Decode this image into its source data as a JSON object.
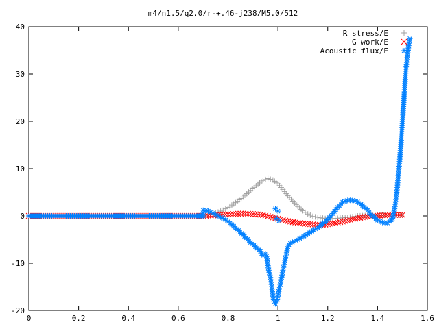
{
  "chart_data": {
    "type": "scatter",
    "title": "m4/n1.5/q2.0/r-+.46-j238/M5.0/512",
    "xlabel": "",
    "ylabel": "",
    "xlim": [
      0,
      1.6
    ],
    "ylim": [
      -20,
      40
    ],
    "xticks": [
      "0",
      "0.2",
      "0.4",
      "0.6",
      "0.8",
      "1",
      "1.2",
      "1.4",
      "1.6"
    ],
    "yticks": [
      "-20",
      "-10",
      "0",
      "10",
      "20",
      "30",
      "40"
    ],
    "grid": false,
    "legend_position": "top-right",
    "series": [
      {
        "name": "R stress/E",
        "marker": "plus",
        "color": "#a0a0a0",
        "points": [
          [
            0,
            0
          ],
          [
            0.7,
            0
          ],
          [
            0.72,
            0.2
          ],
          [
            0.75,
            0.6
          ],
          [
            0.78,
            1.2
          ],
          [
            0.8,
            1.8
          ],
          [
            0.83,
            2.8
          ],
          [
            0.86,
            4.0
          ],
          [
            0.89,
            5.4
          ],
          [
            0.92,
            6.7
          ],
          [
            0.94,
            7.5
          ],
          [
            0.96,
            7.9
          ],
          [
            0.98,
            7.6
          ],
          [
            1.0,
            6.8
          ],
          [
            1.02,
            5.6
          ],
          [
            1.04,
            4.3
          ],
          [
            1.06,
            3.1
          ],
          [
            1.08,
            2.0
          ],
          [
            1.1,
            1.1
          ],
          [
            1.12,
            0.4
          ],
          [
            1.14,
            -0.1
          ],
          [
            1.17,
            -0.4
          ],
          [
            1.2,
            -0.6
          ],
          [
            1.24,
            -0.5
          ],
          [
            1.28,
            -0.3
          ],
          [
            1.32,
            0
          ],
          [
            1.36,
            0.1
          ],
          [
            1.4,
            0.1
          ],
          [
            1.45,
            0.2
          ],
          [
            1.5,
            0.2
          ]
        ]
      },
      {
        "name": "G work/E",
        "marker": "cross",
        "color": "#ff0000",
        "points": [
          [
            0,
            0
          ],
          [
            0.7,
            0
          ],
          [
            0.74,
            0.1
          ],
          [
            0.78,
            0.3
          ],
          [
            0.82,
            0.4
          ],
          [
            0.86,
            0.5
          ],
          [
            0.9,
            0.4
          ],
          [
            0.94,
            0.2
          ],
          [
            0.97,
            -0.2
          ],
          [
            1.0,
            -0.6
          ],
          [
            1.03,
            -1.0
          ],
          [
            1.06,
            -1.3
          ],
          [
            1.1,
            -1.6
          ],
          [
            1.14,
            -1.8
          ],
          [
            1.18,
            -1.9
          ],
          [
            1.22,
            -1.6
          ],
          [
            1.26,
            -1.2
          ],
          [
            1.3,
            -0.7
          ],
          [
            1.34,
            -0.3
          ],
          [
            1.38,
            0
          ],
          [
            1.42,
            0.1
          ],
          [
            1.46,
            0.2
          ],
          [
            1.5,
            0.2
          ]
        ]
      },
      {
        "name": "Acoustic flux/E",
        "marker": "star",
        "color": "#0080ff",
        "points": [
          [
            0,
            0
          ],
          [
            0.7,
            0
          ],
          [
            0.7,
            1.2
          ],
          [
            0.72,
            1.0
          ],
          [
            0.74,
            0.6
          ],
          [
            0.76,
            0
          ],
          [
            0.78,
            -0.5
          ],
          [
            0.8,
            -1.2
          ],
          [
            0.83,
            -2.5
          ],
          [
            0.86,
            -4.0
          ],
          [
            0.89,
            -5.6
          ],
          [
            0.91,
            -6.5
          ],
          [
            0.93,
            -7.5
          ],
          [
            0.94,
            -8.4
          ],
          [
            0.95,
            -8.0
          ],
          [
            0.955,
            -8.5
          ],
          [
            0.96,
            -10.5
          ],
          [
            0.965,
            -12.0
          ],
          [
            0.97,
            -13.0
          ],
          [
            0.975,
            -15.0
          ],
          [
            0.98,
            -17.0
          ],
          [
            0.985,
            -18.2
          ],
          [
            0.99,
            -18.6
          ],
          [
            0.995,
            -18.2
          ],
          [
            1.0,
            -17.0
          ],
          [
            1.005,
            -15.5
          ],
          [
            1.01,
            -14.5
          ],
          [
            1.015,
            -13.0
          ],
          [
            1.02,
            -11.5
          ],
          [
            1.025,
            -10.3
          ],
          [
            1.03,
            -9.0
          ],
          [
            1.035,
            -7.8
          ],
          [
            1.04,
            -6.5
          ],
          [
            1.05,
            -5.8
          ],
          [
            1.08,
            -5.0
          ],
          [
            1.12,
            -3.8
          ],
          [
            1.16,
            -2.5
          ],
          [
            1.2,
            -0.8
          ],
          [
            1.22,
            0.5
          ],
          [
            1.24,
            1.8
          ],
          [
            1.26,
            2.9
          ],
          [
            1.28,
            3.3
          ],
          [
            1.3,
            3.3
          ],
          [
            1.32,
            3.0
          ],
          [
            1.34,
            2.2
          ],
          [
            1.36,
            1.2
          ],
          [
            1.38,
            0
          ],
          [
            1.4,
            -0.9
          ],
          [
            1.42,
            -1.4
          ],
          [
            1.44,
            -1.5
          ],
          [
            1.45,
            -1.2
          ],
          [
            1.46,
            -0.5
          ],
          [
            1.465,
            0.5
          ],
          [
            1.47,
            2.0
          ],
          [
            1.475,
            4.0
          ],
          [
            1.48,
            6.5
          ],
          [
            1.485,
            9.5
          ],
          [
            1.49,
            12.5
          ],
          [
            1.495,
            16.0
          ],
          [
            1.5,
            20.0
          ],
          [
            1.505,
            24.0
          ],
          [
            1.51,
            28.0
          ],
          [
            1.515,
            31.5
          ],
          [
            1.52,
            34.0
          ],
          [
            1.525,
            36.0
          ],
          [
            1.53,
            37.5
          ],
          [
            0.99,
            1.5
          ],
          [
            1.0,
            1.0
          ],
          [
            0.995,
            -0.5
          ],
          [
            1.005,
            -1.0
          ]
        ]
      }
    ]
  }
}
